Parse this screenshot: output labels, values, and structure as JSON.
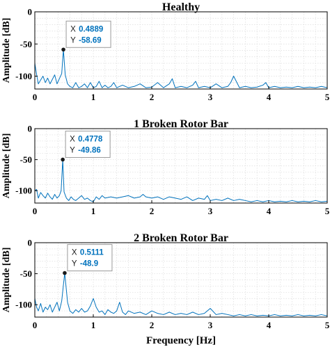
{
  "xlabel": "Frequency [Hz]",
  "colors": {
    "line": "#0072BD",
    "marker": "#1a1a1a",
    "grid": "#dcdcdc",
    "axis": "#000000"
  },
  "chart_data": [
    {
      "type": "line",
      "title": "Healthy",
      "ylabel": "Amplitude [dB]",
      "xlim": [
        0,
        5
      ],
      "ylim": [
        -120,
        0
      ],
      "xticks": [
        0,
        1,
        2,
        3,
        4,
        5
      ],
      "yticks": [
        0,
        -50,
        -100
      ],
      "grid": true,
      "datatip": {
        "x_label": "X",
        "x_value": "0.4889",
        "y_label": "Y",
        "y_value": "-58.69",
        "x": 0.4889,
        "y": -58.69
      },
      "series": [
        {
          "x": [
            0,
            0.03,
            0.06,
            0.1,
            0.14,
            0.18,
            0.22,
            0.26,
            0.3,
            0.34,
            0.38,
            0.42,
            0.46,
            0.4889,
            0.52,
            0.56,
            0.6,
            0.65,
            0.7,
            0.75,
            0.8,
            0.85,
            0.9,
            0.95,
            1.0,
            1.05,
            1.1,
            1.15,
            1.2,
            1.25,
            1.3,
            1.35,
            1.4,
            1.5,
            1.6,
            1.7,
            1.8,
            1.9,
            2.0,
            2.1,
            2.2,
            2.3,
            2.35,
            2.4,
            2.5,
            2.6,
            2.7,
            2.75,
            2.8,
            2.9,
            3.0,
            3.1,
            3.2,
            3.3,
            3.35,
            3.4,
            3.5,
            3.6,
            3.7,
            3.8,
            3.9,
            3.95,
            4.0,
            4.1,
            4.2,
            4.3,
            4.4,
            4.5,
            4.6,
            4.7,
            4.8,
            4.9,
            5.0
          ],
          "y": [
            -80,
            -97,
            -112,
            -106,
            -100,
            -110,
            -103,
            -112,
            -105,
            -98,
            -112,
            -104,
            -96,
            -58.69,
            -98,
            -112,
            -116,
            -118,
            -110,
            -118,
            -116,
            -112,
            -118,
            -110,
            -118,
            -116,
            -108,
            -118,
            -114,
            -118,
            -116,
            -110,
            -118,
            -114,
            -118,
            -116,
            -112,
            -118,
            -117,
            -110,
            -118,
            -112,
            -104,
            -118,
            -116,
            -118,
            -114,
            -108,
            -118,
            -116,
            -118,
            -112,
            -118,
            -116,
            -110,
            -100,
            -118,
            -116,
            -118,
            -117,
            -114,
            -110,
            -118,
            -116,
            -118,
            -117,
            -118,
            -116,
            -118,
            -117,
            -118,
            -116,
            -118
          ]
        }
      ]
    },
    {
      "type": "line",
      "title": "1 Broken Rotor Bar",
      "ylabel": "Amplitude [dB]",
      "xlim": [
        0,
        5
      ],
      "ylim": [
        -120,
        0
      ],
      "xticks": [
        0,
        1,
        2,
        3,
        4,
        5
      ],
      "yticks": [
        0,
        -50,
        -100
      ],
      "grid": true,
      "datatip": {
        "x_label": "X",
        "x_value": "0.4778",
        "y_label": "Y",
        "y_value": "-49.86",
        "x": 0.4778,
        "y": -49.86
      },
      "series": [
        {
          "x": [
            0,
            0.03,
            0.06,
            0.1,
            0.14,
            0.18,
            0.22,
            0.26,
            0.3,
            0.34,
            0.38,
            0.42,
            0.45,
            0.4778,
            0.5,
            0.54,
            0.58,
            0.62,
            0.66,
            0.7,
            0.75,
            0.8,
            0.85,
            0.9,
            0.95,
            1.0,
            1.05,
            1.1,
            1.15,
            1.2,
            1.3,
            1.4,
            1.5,
            1.6,
            1.7,
            1.8,
            1.85,
            1.9,
            2.0,
            2.1,
            2.2,
            2.3,
            2.4,
            2.5,
            2.6,
            2.7,
            2.8,
            2.9,
            2.95,
            3.0,
            3.1,
            3.2,
            3.3,
            3.4,
            3.5,
            3.6,
            3.7,
            3.8,
            3.9,
            4.0,
            4.1,
            4.2,
            4.3,
            4.4,
            4.5,
            4.6,
            4.7,
            4.8,
            4.9,
            5.0
          ],
          "y": [
            -100,
            -98,
            -112,
            -103,
            -108,
            -112,
            -104,
            -110,
            -114,
            -106,
            -112,
            -108,
            -100,
            -49.86,
            -102,
            -112,
            -116,
            -110,
            -114,
            -116,
            -112,
            -108,
            -114,
            -112,
            -116,
            -118,
            -110,
            -114,
            -108,
            -112,
            -110,
            -112,
            -110,
            -108,
            -112,
            -110,
            -106,
            -110,
            -112,
            -110,
            -114,
            -110,
            -112,
            -114,
            -110,
            -116,
            -112,
            -114,
            -108,
            -116,
            -114,
            -116,
            -112,
            -116,
            -114,
            -116,
            -118,
            -116,
            -118,
            -116,
            -118,
            -117,
            -118,
            -116,
            -118,
            -117,
            -118,
            -116,
            -118,
            -117
          ]
        }
      ]
    },
    {
      "type": "line",
      "title": "2 Broken Rotor Bar",
      "ylabel": "Amplitude [dB]",
      "xlim": [
        0,
        5
      ],
      "ylim": [
        -120,
        0
      ],
      "xticks": [
        0,
        1,
        2,
        3,
        4,
        5
      ],
      "yticks": [
        0,
        -50,
        -100
      ],
      "grid": true,
      "datatip": {
        "x_label": "X",
        "x_value": "0.5111",
        "y_label": "Y",
        "y_value": "-48.9",
        "x": 0.5111,
        "y": -48.9
      },
      "series": [
        {
          "x": [
            0,
            0.03,
            0.06,
            0.1,
            0.14,
            0.18,
            0.22,
            0.26,
            0.3,
            0.34,
            0.38,
            0.42,
            0.46,
            0.5111,
            0.56,
            0.6,
            0.65,
            0.7,
            0.75,
            0.8,
            0.85,
            0.9,
            0.95,
            1.0,
            1.05,
            1.1,
            1.15,
            1.2,
            1.25,
            1.3,
            1.35,
            1.4,
            1.45,
            1.5,
            1.55,
            1.6,
            1.7,
            1.8,
            1.9,
            2.0,
            2.1,
            2.2,
            2.3,
            2.4,
            2.5,
            2.6,
            2.7,
            2.8,
            2.9,
            3.0,
            3.1,
            3.2,
            3.3,
            3.4,
            3.5,
            3.6,
            3.7,
            3.8,
            3.9,
            4.0,
            4.1,
            4.2,
            4.3,
            4.4,
            4.5,
            4.6,
            4.7,
            4.8,
            4.9,
            5.0
          ],
          "y": [
            -90,
            -104,
            -110,
            -98,
            -112,
            -104,
            -108,
            -100,
            -112,
            -104,
            -96,
            -110,
            -94,
            -48.9,
            -96,
            -110,
            -114,
            -108,
            -112,
            -106,
            -112,
            -110,
            -102,
            -90,
            -104,
            -112,
            -110,
            -116,
            -108,
            -112,
            -114,
            -110,
            -96,
            -112,
            -116,
            -110,
            -114,
            -112,
            -116,
            -110,
            -114,
            -116,
            -112,
            -116,
            -114,
            -116,
            -112,
            -116,
            -114,
            -106,
            -116,
            -114,
            -116,
            -118,
            -116,
            -118,
            -116,
            -118,
            -117,
            -118,
            -116,
            -118,
            -117,
            -118,
            -116,
            -118,
            -117,
            -118,
            -116,
            -118
          ]
        }
      ]
    }
  ]
}
